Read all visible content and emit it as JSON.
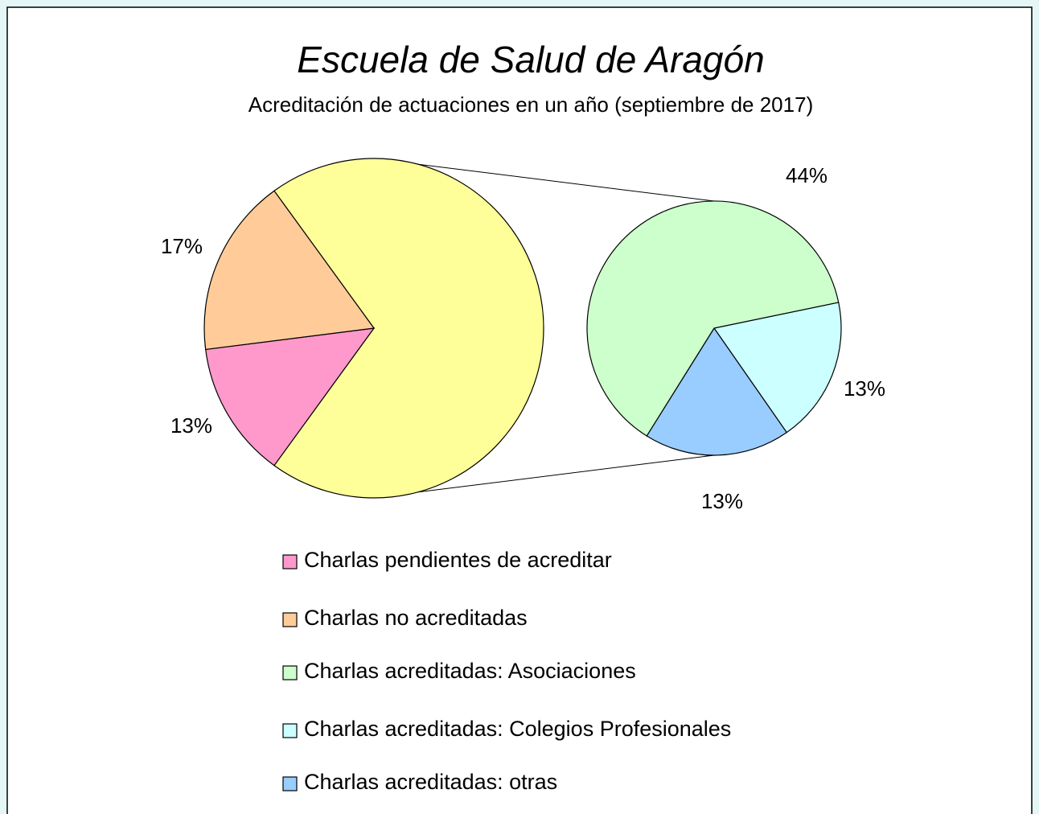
{
  "chart_data": {
    "type": "pie-of-pie",
    "title": "Escuela de Salud de Aragón",
    "subtitle": "Acreditación de actuaciones en un año (septiembre de 2017)",
    "categories": [
      "Charlas pendientes de acreditar",
      "Charlas no acreditadas",
      "Charlas acreditadas: Asociaciones",
      "Charlas acreditadas: Colegios Profesionales",
      "Charlas acreditadas: otras"
    ],
    "values": [
      13,
      17,
      44,
      13,
      13
    ],
    "value_labels": [
      "13%",
      "17%",
      "44%",
      "13%",
      "13%"
    ],
    "colors": [
      "#ff99cc",
      "#ffcc99",
      "#ccffcc",
      "#ccffff",
      "#99ccff"
    ],
    "legend": "bottom"
  }
}
